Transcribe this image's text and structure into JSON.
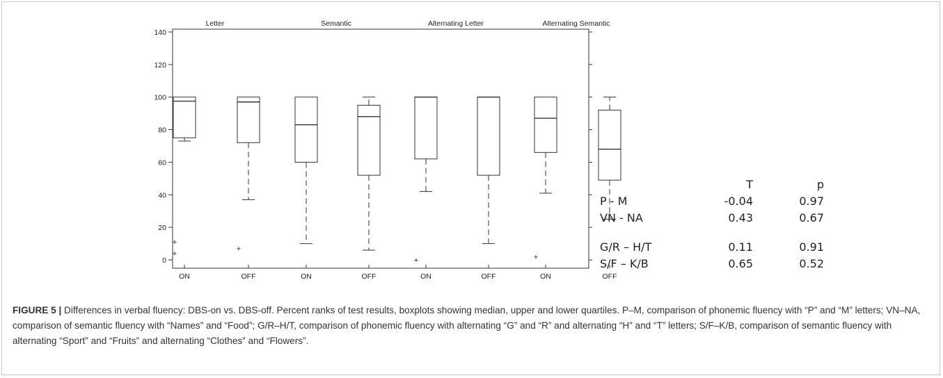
{
  "chart_data": {
    "type": "box",
    "ylim": [
      0,
      140
    ],
    "yticks": [
      0,
      20,
      40,
      60,
      80,
      100,
      120,
      140
    ],
    "panels": [
      {
        "title": "Letter",
        "boxes": [
          {
            "label": "ON",
            "q1": 75,
            "median": 97.5,
            "q3": 100,
            "whisker_low": 73,
            "whisker_high": 100,
            "outliers": [
              11,
              4
            ]
          },
          {
            "label": "OFF",
            "q1": 72,
            "median": 97,
            "q3": 100,
            "whisker_low": 37,
            "whisker_high": 100,
            "outliers": [
              7
            ]
          }
        ]
      },
      {
        "title": "Semantic",
        "boxes": [
          {
            "label": "ON",
            "q1": 60,
            "median": 83,
            "q3": 100,
            "whisker_low": 10,
            "whisker_high": 100,
            "outliers": []
          },
          {
            "label": "OFF",
            "q1": 52,
            "median": 88,
            "q3": 95,
            "whisker_low": 6,
            "whisker_high": 100,
            "outliers": []
          }
        ]
      },
      {
        "title": "Alternating Letter",
        "boxes": [
          {
            "label": "ON",
            "q1": 62,
            "median": 100,
            "q3": 100,
            "whisker_low": 42,
            "whisker_high": 100,
            "outliers": [
              0
            ]
          },
          {
            "label": "OFF",
            "q1": 52,
            "median": 100,
            "q3": 100,
            "whisker_low": 10,
            "whisker_high": 100,
            "outliers": []
          }
        ]
      },
      {
        "title": "Alternating Semantic",
        "boxes": [
          {
            "label": "ON",
            "q1": 66,
            "median": 87,
            "q3": 100,
            "whisker_low": 41,
            "whisker_high": 100,
            "outliers": [
              2
            ]
          },
          {
            "label": "OFF",
            "q1": 49,
            "median": 68,
            "q3": 92,
            "whisker_low": 25,
            "whisker_high": 100,
            "outliers": []
          }
        ]
      }
    ]
  },
  "stats_table": {
    "headers": [
      "",
      "T",
      "p"
    ],
    "rows": [
      {
        "label": "P - M",
        "t": "-0.04",
        "p": "0.97"
      },
      {
        "label": "VN - NA",
        "t": "0.43",
        "p": "0.67"
      },
      {
        "label": "G/R – H/T",
        "t": "0.11",
        "p": "0.91"
      },
      {
        "label": "S/F – K/B",
        "t": "0.65",
        "p": "0.52"
      }
    ]
  },
  "caption": {
    "label": "FIGURE 5 |",
    "text": " Differences in verbal fluency: DBS-on vs. DBS-off. Percent ranks of test results, boxplots showing median, upper and lower quartiles. P–M, comparison of phonemic fluency with “P” and “M” letters; VN–NA, comparison of semantic fluency with “Names” and “Food”; G/R–H/T, comparison of phonemic fluency with alternating “G” and “R” and alternating “H” and “T” letters; S/F–K/B, comparison of semantic fluency with alternating “Sport” and “Fruits” and alternating “Clothes” and “Flowers”."
  }
}
